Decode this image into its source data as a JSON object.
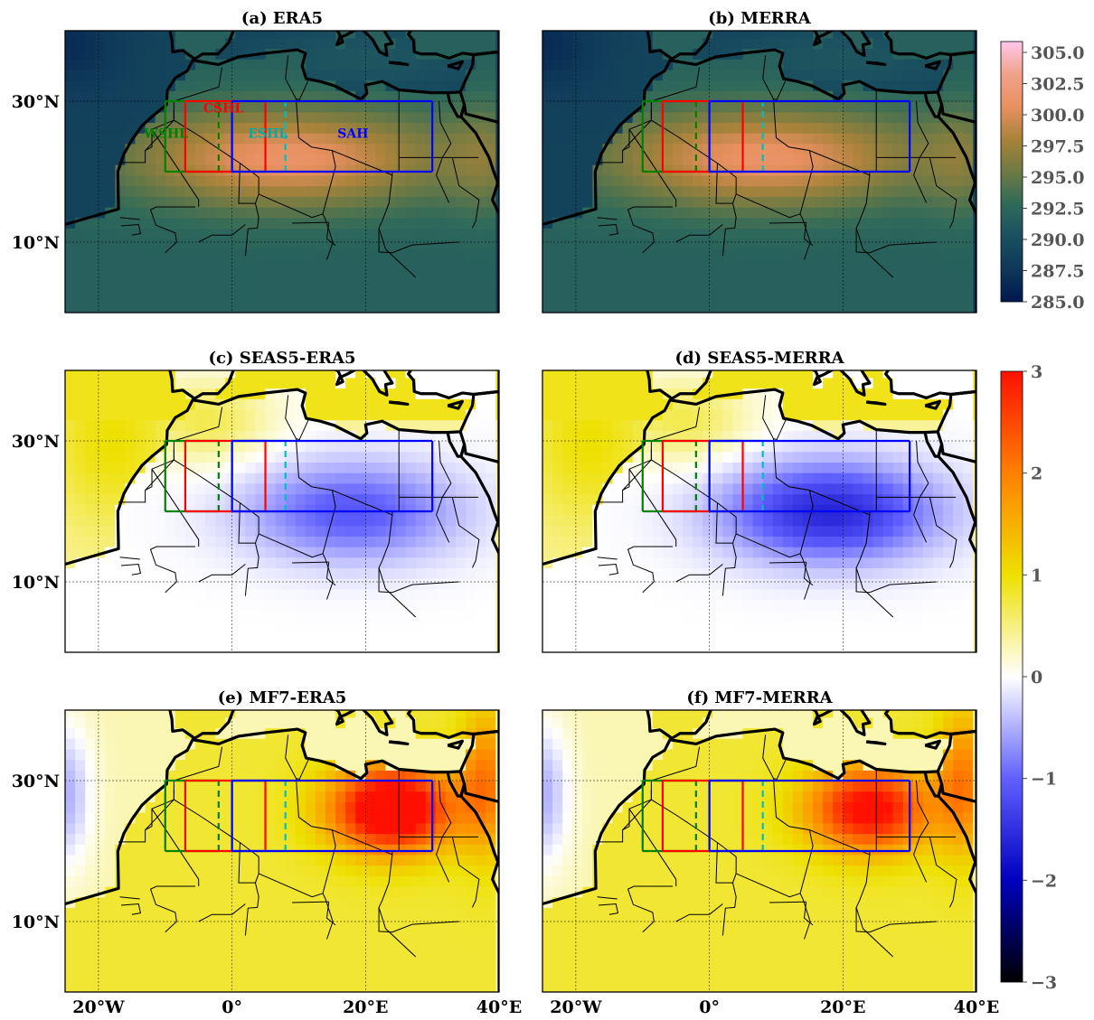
{
  "panels": [
    {
      "id": "a",
      "title": "(a) ERA5",
      "kind": "abs",
      "show_region_labels": true
    },
    {
      "id": "b",
      "title": "(b) MERRA",
      "kind": "abs",
      "show_region_labels": false
    },
    {
      "id": "c",
      "title": "(c) SEAS5-ERA5",
      "kind": "diff_seas5_era5"
    },
    {
      "id": "d",
      "title": "(d) SEAS5-MERRA",
      "kind": "diff_seas5_merra"
    },
    {
      "id": "e",
      "title": "(e) MF7-ERA5",
      "kind": "diff_mf7_era5"
    },
    {
      "id": "f",
      "title": "(f) MF7-MERRA",
      "kind": "diff_mf7_merra"
    }
  ],
  "map_extent": {
    "lon": [
      -25,
      40
    ],
    "lat": [
      0,
      40
    ]
  },
  "lat_ticks": [
    {
      "value": 30,
      "label": "30°N"
    },
    {
      "value": 10,
      "label": "10°N"
    }
  ],
  "lon_ticks": [
    {
      "value": -20,
      "label": "20°W"
    },
    {
      "value": 0,
      "label": "0°"
    },
    {
      "value": 20,
      "label": "20°E"
    },
    {
      "value": 40,
      "label": "40°E"
    }
  ],
  "regions": [
    {
      "name": "WSHL",
      "lon": [
        -10,
        -2
      ],
      "lat": [
        20,
        30
      ],
      "color": "#008000",
      "label_color": "#008000"
    },
    {
      "name": "CSHL",
      "lon": [
        -7,
        5
      ],
      "lat": [
        20,
        30
      ],
      "color": "#ff0000",
      "label_color": "#ff0000"
    },
    {
      "name": "ESHL",
      "lon": [
        0,
        8
      ],
      "lat": [
        20,
        30
      ],
      "color": "#00bfbf",
      "label_color": "#00aaaa"
    },
    {
      "name": "SAH",
      "lon": [
        0,
        30
      ],
      "lat": [
        20,
        30
      ],
      "color": "#0000ff",
      "label_color": "#0000ff"
    }
  ],
  "colorbar_top": {
    "range": [
      285.0,
      305.0
    ],
    "ticks": [
      "305.0",
      "302.5",
      "300.0",
      "297.5",
      "295.0",
      "292.5",
      "290.0",
      "287.5",
      "285.0"
    ],
    "colors": [
      "#ffc8ea",
      "#f0a28a",
      "#e89060",
      "#a8833a",
      "#6f7a44",
      "#2f6a5a",
      "#1a5060",
      "#0e3858",
      "#001850"
    ]
  },
  "colorbar_bottom": {
    "range": [
      -3,
      3
    ],
    "ticks": [
      "3",
      "2",
      "1",
      "0",
      "−1",
      "−2",
      "−3"
    ],
    "colors": [
      "#ff1000",
      "#ff8000",
      "#eee000",
      "#ffffff",
      "#6060ff",
      "#0000c0",
      "#000000"
    ]
  },
  "colors": {
    "ocean": "#1d5a5c",
    "land_hot": "#f0a482",
    "land_warm": "#b3843c",
    "coast": "#000000",
    "missing": "#e6e6e6"
  }
}
